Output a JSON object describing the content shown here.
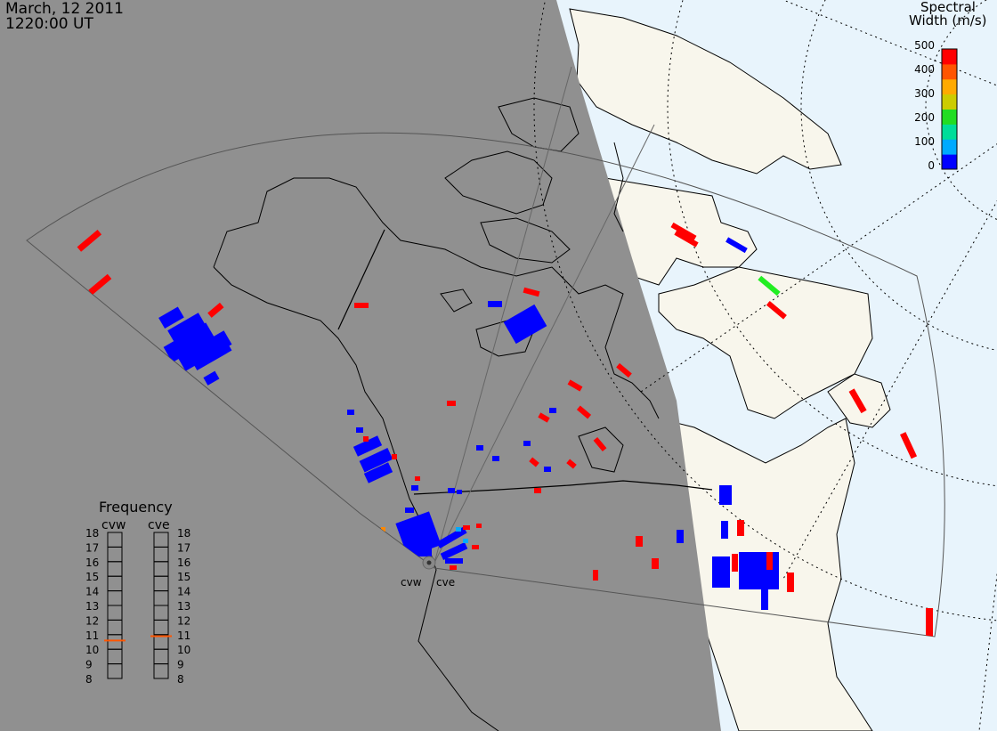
{
  "header": {
    "date": "March, 12 2011",
    "time": "1220:00 UT"
  },
  "colorbar": {
    "title_line1": "Spectral",
    "title_line2": "Width (m/s)",
    "ticks": [
      "500",
      "400",
      "300",
      "200",
      "100",
      "0"
    ],
    "range": [
      0,
      500
    ],
    "colors": [
      "#0000ff",
      "#00aaff",
      "#00dd99",
      "#22dd22",
      "#cccc00",
      "#ffaa00",
      "#ff5500",
      "#ff0000"
    ]
  },
  "frequency": {
    "title": "Frequency",
    "cvw": {
      "label": "cvw",
      "value_mhz": 10.6
    },
    "cve": {
      "label": "cve",
      "value_mhz": 10.9
    },
    "ticks": [
      "18",
      "17",
      "16",
      "15",
      "14",
      "13",
      "12",
      "11",
      "10",
      "9",
      "8"
    ]
  },
  "radars": [
    {
      "label": "cvw"
    },
    {
      "label": "cve"
    }
  ],
  "colors": {
    "night": "#909090",
    "day_ocean": "#e8f4fc",
    "day_land": "#f8f6ec",
    "low_width": "#0000ff",
    "high_width": "#ff0000",
    "mid_width": "#00ee00",
    "marker": "#ff5500"
  }
}
